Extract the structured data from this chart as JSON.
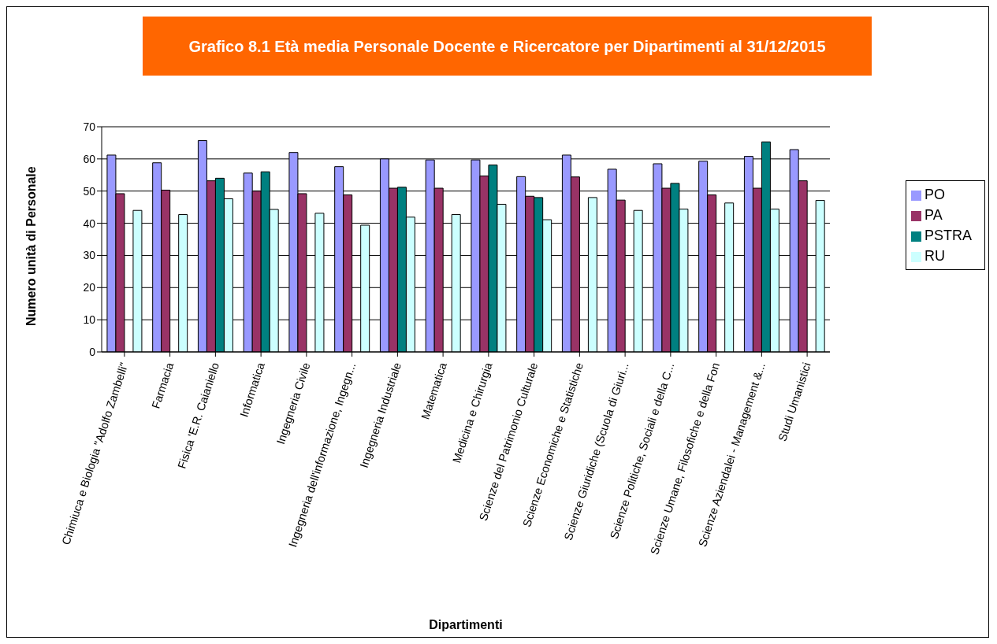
{
  "chart_data": {
    "type": "bar",
    "title": "Grafico 8.1 Età media Personale Docente e Ricercatore per Dipartimenti al 31/12/2015",
    "xlabel": "Dipartimenti",
    "ylabel": "Numero unità di Personale",
    "categories": [
      "Chimiuca e Biologia  \"Adolfo Zambelli\"",
      "Farmacia",
      "Fisica 'E.R. Caianiello",
      "Informatica",
      "Ingegneria Civile",
      "Ingegneria dell'informazione, Ingegn...",
      "Ingegneria Industriale",
      "Matematica",
      "Medicina e Chirurgia",
      "Scienze del Patrimonio Culturale",
      "Scienze Economiche e Statistiche",
      "Scienze Giuridiche (Scuola di Giuri...",
      "Scienze Politiche, Sociali e della C...",
      "Scienze Umane, Filosofiche e della Fon",
      "Scienze Aziendalei - Management &...",
      "Studi Umanistici"
    ],
    "series": [
      {
        "name": "PO",
        "color": "#9999ff",
        "values": [
          61.2,
          58.8,
          65.7,
          55.6,
          62,
          57.6,
          60,
          59.7,
          59.7,
          54.5,
          61.2,
          56.8,
          58.5,
          59.3,
          60.8,
          62.9
        ]
      },
      {
        "name": "PA",
        "color": "#993366",
        "values": [
          49.2,
          50.3,
          53.2,
          50,
          49.2,
          48.8,
          50.9,
          50.9,
          54.7,
          48.4,
          54.4,
          47.2,
          50.9,
          48.8,
          50.9,
          53.2
        ]
      },
      {
        "name": "PSTRA",
        "color": "#008080",
        "values": [
          null,
          null,
          54,
          56,
          null,
          null,
          51.2,
          null,
          58.1,
          48,
          null,
          null,
          52.4,
          null,
          65.3,
          null
        ]
      },
      {
        "name": "RU",
        "color": "#ccffff",
        "values": [
          44,
          42.7,
          47.6,
          44.3,
          43.1,
          39.4,
          41.9,
          42.7,
          45.9,
          41.1,
          48,
          44,
          44.4,
          46.3,
          44.4,
          47.1
        ]
      }
    ],
    "ylim": [
      0,
      70
    ],
    "yticks": [
      0,
      10,
      20,
      30,
      40,
      50,
      60,
      70
    ],
    "grid": "y",
    "legend": "right"
  }
}
